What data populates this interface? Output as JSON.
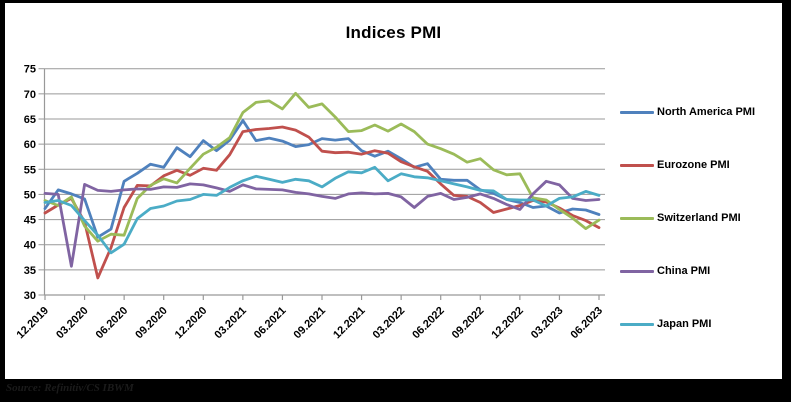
{
  "window": {
    "background": "#000000",
    "panel_background": "#ffffff"
  },
  "source_note": "Source: Refinitiv/CS IBWM",
  "chart_data": {
    "type": "line",
    "title": "Indices PMI",
    "xlabel": "",
    "ylabel": "",
    "x_frequency": "monthly",
    "x_start": "12.2019",
    "x_end": "06.2023",
    "x_labels": [
      "12.2019",
      "03.2020",
      "06.2020",
      "09.2020",
      "12.2020",
      "03.2021",
      "06.2021",
      "09.2021",
      "12.2021",
      "03.2022",
      "06.2022",
      "09.2022",
      "12.2022",
      "03.2023",
      "06.2023"
    ],
    "x_label_every_n_months": 3,
    "ylim": [
      30,
      75
    ],
    "y_tick_step": 5,
    "grid": true,
    "grid_color": "#999999",
    "axis_color": "#999999",
    "tick_label_color": "#000000",
    "legend_position": "right",
    "series": [
      {
        "id": "north-america",
        "name": "North America PMI",
        "color": "#4F81BD",
        "values": [
          47.2,
          50.9,
          50.1,
          49.1,
          41.5,
          43.1,
          52.6,
          54.2,
          56.0,
          55.4,
          59.3,
          57.5,
          60.7,
          58.7,
          60.8,
          64.7,
          60.7,
          61.2,
          60.6,
          59.5,
          59.9,
          61.1,
          60.8,
          61.1,
          58.7,
          57.6,
          58.6,
          57.1,
          55.4,
          56.1,
          53.0,
          52.8,
          52.8,
          50.9,
          50.2,
          49.0,
          48.4,
          47.4,
          47.7,
          46.3,
          47.1,
          46.9,
          46.0
        ]
      },
      {
        "id": "eurozone",
        "name": "Eurozone PMI",
        "color": "#C0504D",
        "values": [
          46.3,
          47.9,
          49.2,
          44.5,
          33.4,
          39.4,
          47.4,
          51.8,
          51.7,
          53.7,
          54.8,
          53.8,
          55.2,
          54.8,
          57.9,
          62.5,
          62.9,
          63.1,
          63.4,
          62.8,
          61.4,
          58.6,
          58.3,
          58.4,
          58.0,
          58.7,
          58.2,
          56.5,
          55.5,
          54.6,
          52.1,
          49.8,
          49.6,
          48.4,
          46.4,
          47.1,
          47.8,
          48.8,
          48.5,
          47.3,
          45.8,
          44.8,
          43.4
        ]
      },
      {
        "id": "switzerland",
        "name": "Switzerland PMI",
        "color": "#9BBB59",
        "values": [
          48.8,
          47.8,
          49.5,
          43.7,
          40.7,
          42.1,
          41.9,
          49.2,
          51.8,
          53.1,
          52.3,
          55.2,
          58.0,
          59.4,
          61.3,
          66.3,
          68.3,
          68.6,
          67.0,
          70.1,
          67.3,
          68.0,
          65.4,
          62.5,
          62.7,
          63.8,
          62.6,
          64.0,
          62.5,
          60.0,
          59.1,
          58.0,
          56.4,
          57.1,
          54.9,
          53.9,
          54.1,
          49.3,
          48.9,
          47.0,
          45.3,
          43.2,
          44.9
        ]
      },
      {
        "id": "china",
        "name": "China PMI",
        "color": "#8064A2",
        "values": [
          50.2,
          50.0,
          35.7,
          52.0,
          50.8,
          50.6,
          50.9,
          51.1,
          51.0,
          51.5,
          51.4,
          52.1,
          51.9,
          51.3,
          50.6,
          51.9,
          51.1,
          51.0,
          50.9,
          50.4,
          50.1,
          49.6,
          49.2,
          50.1,
          50.3,
          50.1,
          50.2,
          49.5,
          47.4,
          49.6,
          50.2,
          49.0,
          49.4,
          50.1,
          49.2,
          48.0,
          47.0,
          50.1,
          52.6,
          51.9,
          49.2,
          48.8,
          49.0
        ]
      },
      {
        "id": "japan",
        "name": "Japan PMI",
        "color": "#4BACC6",
        "values": [
          48.4,
          48.8,
          47.8,
          44.8,
          41.9,
          38.4,
          40.1,
          45.2,
          47.2,
          47.7,
          48.7,
          49.0,
          50.0,
          49.8,
          51.4,
          52.7,
          53.6,
          53.0,
          52.4,
          53.0,
          52.7,
          51.5,
          53.2,
          54.5,
          54.3,
          55.4,
          52.7,
          54.1,
          53.5,
          53.3,
          52.7,
          52.1,
          51.5,
          50.8,
          50.7,
          49.0,
          48.9,
          48.9,
          47.7,
          49.2,
          49.5,
          50.6,
          49.8
        ]
      }
    ]
  }
}
